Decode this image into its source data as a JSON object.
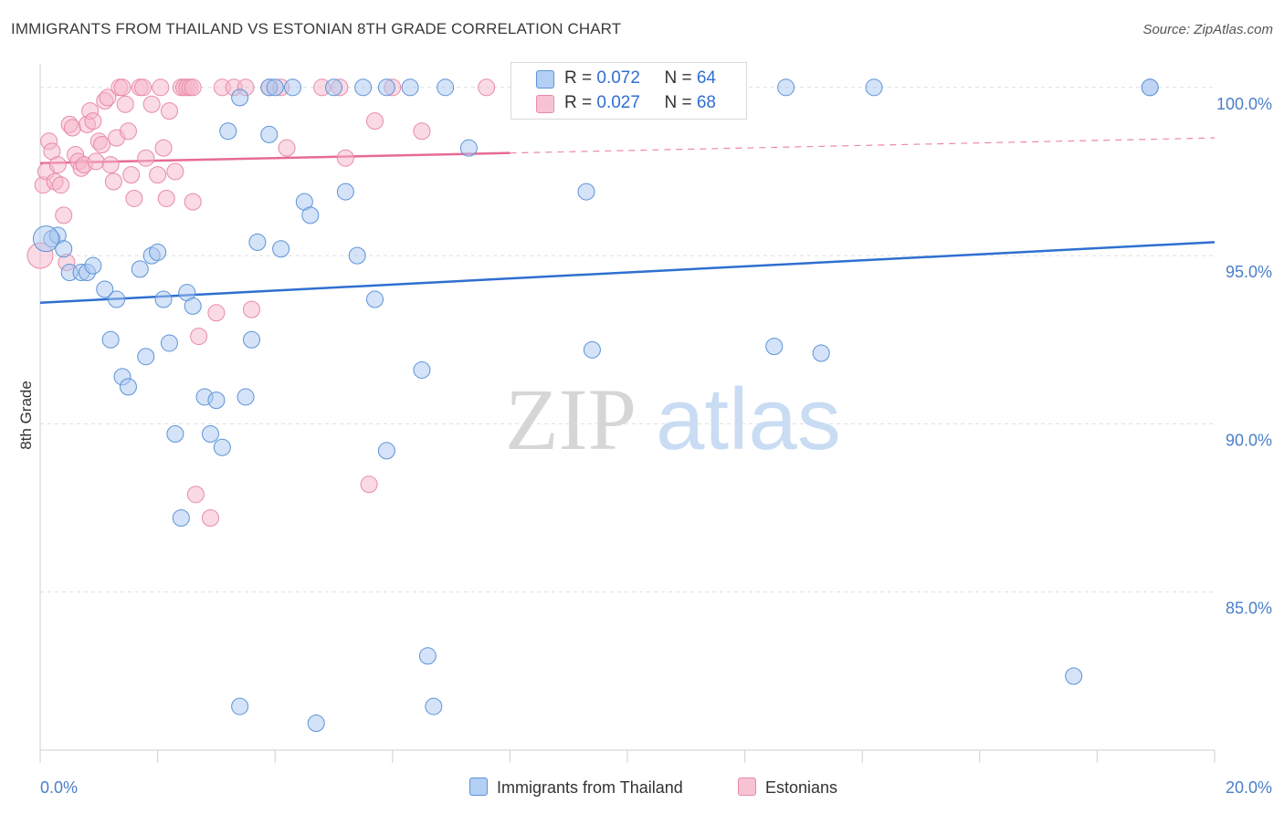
{
  "title": "IMMIGRANTS FROM THAILAND VS ESTONIAN 8TH GRADE CORRELATION CHART",
  "source": "Source: ZipAtlas.com",
  "watermark": {
    "zip": "ZIP",
    "atlas": "atlas"
  },
  "legend": {
    "series1": {
      "r_label": "R = ",
      "r_value": "0.072",
      "n_label": "N = ",
      "n_value": "64"
    },
    "series2": {
      "r_label": "R = ",
      "r_value": "0.027",
      "n_label": "N = ",
      "n_value": "68"
    }
  },
  "colors": {
    "blue_fill": "#a9c8f0",
    "blue_stroke": "#5d93d8",
    "blue_line": "#2f6fd0",
    "pink_fill": "#f5b6c9",
    "pink_stroke": "#e88aa8",
    "pink_line": "#e76b93",
    "grid": "#dedede",
    "tick_text": "#4a7fc8"
  },
  "chart_data": {
    "type": "scatter",
    "title": "IMMIGRANTS FROM THAILAND VS ESTONIAN 8TH GRADE CORRELATION CHART",
    "xlabel": "",
    "ylabel": "8th Grade",
    "xlim": [
      0,
      20
    ],
    "ylim": [
      80.3,
      100.7
    ],
    "x_tick_labels": [
      {
        "value": 0,
        "label": "0.0%"
      },
      {
        "value": 20,
        "label": "20.0%"
      }
    ],
    "y_tick_labels": [
      {
        "value": 100,
        "label": "100.0%"
      },
      {
        "value": 95,
        "label": "95.0%"
      },
      {
        "value": 90,
        "label": "90.0%"
      },
      {
        "value": 85,
        "label": "85.0%"
      }
    ],
    "series": [
      {
        "name": "Immigrants from Thailand",
        "color": "blue",
        "trend": {
          "x": [
            0,
            20
          ],
          "y": [
            93.6,
            95.4
          ],
          "solid_until": 20
        },
        "points": [
          [
            0.2,
            95.5
          ],
          [
            0.3,
            95.6
          ],
          [
            0.4,
            95.2
          ],
          [
            0.5,
            94.5
          ],
          [
            0.7,
            94.5
          ],
          [
            0.8,
            94.5
          ],
          [
            0.9,
            94.7
          ],
          [
            1.1,
            94.0
          ],
          [
            1.3,
            93.7
          ],
          [
            1.2,
            92.5
          ],
          [
            1.4,
            91.4
          ],
          [
            1.5,
            91.1
          ],
          [
            1.7,
            94.6
          ],
          [
            1.8,
            92.0
          ],
          [
            1.9,
            95.0
          ],
          [
            2.0,
            95.1
          ],
          [
            2.1,
            93.7
          ],
          [
            2.2,
            92.4
          ],
          [
            2.3,
            89.7
          ],
          [
            2.4,
            87.2
          ],
          [
            2.5,
            93.9
          ],
          [
            2.6,
            93.5
          ],
          [
            2.8,
            90.8
          ],
          [
            2.9,
            89.7
          ],
          [
            3.0,
            90.7
          ],
          [
            3.1,
            89.3
          ],
          [
            3.2,
            98.7
          ],
          [
            3.4,
            81.6
          ],
          [
            3.4,
            99.7
          ],
          [
            3.5,
            90.8
          ],
          [
            3.6,
            92.5
          ],
          [
            3.7,
            95.4
          ],
          [
            3.9,
            98.6
          ],
          [
            3.9,
            100.0
          ],
          [
            4.0,
            100.0
          ],
          [
            4.1,
            95.2
          ],
          [
            4.3,
            100.0
          ],
          [
            4.5,
            96.6
          ],
          [
            4.6,
            96.2
          ],
          [
            4.7,
            81.1
          ],
          [
            5.0,
            100.0
          ],
          [
            5.2,
            96.9
          ],
          [
            5.4,
            95.0
          ],
          [
            5.5,
            100.0
          ],
          [
            5.7,
            93.7
          ],
          [
            5.9,
            100.0
          ],
          [
            5.9,
            89.2
          ],
          [
            6.3,
            100.0
          ],
          [
            6.5,
            91.6
          ],
          [
            6.6,
            83.1
          ],
          [
            6.7,
            81.6
          ],
          [
            6.9,
            100.0
          ],
          [
            7.3,
            98.2
          ],
          [
            9.3,
            96.9
          ],
          [
            9.4,
            92.2
          ],
          [
            11.1,
            100.0
          ],
          [
            12.5,
            92.3
          ],
          [
            12.7,
            100.0
          ],
          [
            13.3,
            92.1
          ],
          [
            14.2,
            100.0
          ],
          [
            17.6,
            82.5
          ],
          [
            18.9,
            100.0
          ],
          [
            18.9,
            100.0
          ],
          [
            0.1,
            95.5
          ]
        ]
      },
      {
        "name": "Estonians",
        "color": "pink",
        "trend": {
          "x": [
            0,
            20
          ],
          "y": [
            97.75,
            98.5
          ],
          "solid_until": 8.0
        },
        "points": [
          [
            0.0,
            95.0
          ],
          [
            0.05,
            97.1
          ],
          [
            0.1,
            97.5
          ],
          [
            0.15,
            98.4
          ],
          [
            0.2,
            98.1
          ],
          [
            0.25,
            97.2
          ],
          [
            0.3,
            97.7
          ],
          [
            0.35,
            97.1
          ],
          [
            0.4,
            96.2
          ],
          [
            0.45,
            94.8
          ],
          [
            0.5,
            98.9
          ],
          [
            0.55,
            98.8
          ],
          [
            0.6,
            98.0
          ],
          [
            0.65,
            97.8
          ],
          [
            0.7,
            97.6
          ],
          [
            0.75,
            97.7
          ],
          [
            0.8,
            98.9
          ],
          [
            0.85,
            99.3
          ],
          [
            0.9,
            99.0
          ],
          [
            0.95,
            97.8
          ],
          [
            1.0,
            98.4
          ],
          [
            1.05,
            98.3
          ],
          [
            1.1,
            99.6
          ],
          [
            1.15,
            99.7
          ],
          [
            1.2,
            97.7
          ],
          [
            1.25,
            97.2
          ],
          [
            1.3,
            98.5
          ],
          [
            1.35,
            100.0
          ],
          [
            1.4,
            100.0
          ],
          [
            1.45,
            99.5
          ],
          [
            1.5,
            98.7
          ],
          [
            1.55,
            97.4
          ],
          [
            1.6,
            96.7
          ],
          [
            1.7,
            100.0
          ],
          [
            1.75,
            100.0
          ],
          [
            1.8,
            97.9
          ],
          [
            1.9,
            99.5
          ],
          [
            2.0,
            97.4
          ],
          [
            2.05,
            100.0
          ],
          [
            2.1,
            98.2
          ],
          [
            2.15,
            96.7
          ],
          [
            2.2,
            99.3
          ],
          [
            2.3,
            97.5
          ],
          [
            2.4,
            100.0
          ],
          [
            2.45,
            100.0
          ],
          [
            2.5,
            100.0
          ],
          [
            2.55,
            100.0
          ],
          [
            2.6,
            100.0
          ],
          [
            2.6,
            96.6
          ],
          [
            2.65,
            87.9
          ],
          [
            2.7,
            92.6
          ],
          [
            2.9,
            87.2
          ],
          [
            3.0,
            93.3
          ],
          [
            3.1,
            100.0
          ],
          [
            3.3,
            100.0
          ],
          [
            3.5,
            100.0
          ],
          [
            3.6,
            93.4
          ],
          [
            3.9,
            100.0
          ],
          [
            4.1,
            100.0
          ],
          [
            4.2,
            98.2
          ],
          [
            4.8,
            100.0
          ],
          [
            5.1,
            100.0
          ],
          [
            5.2,
            97.9
          ],
          [
            5.6,
            88.2
          ],
          [
            5.7,
            99.0
          ],
          [
            6.0,
            100.0
          ],
          [
            6.5,
            98.7
          ],
          [
            7.6,
            100.0
          ]
        ]
      }
    ],
    "legend": [
      "Immigrants from Thailand",
      "Estonians"
    ]
  }
}
